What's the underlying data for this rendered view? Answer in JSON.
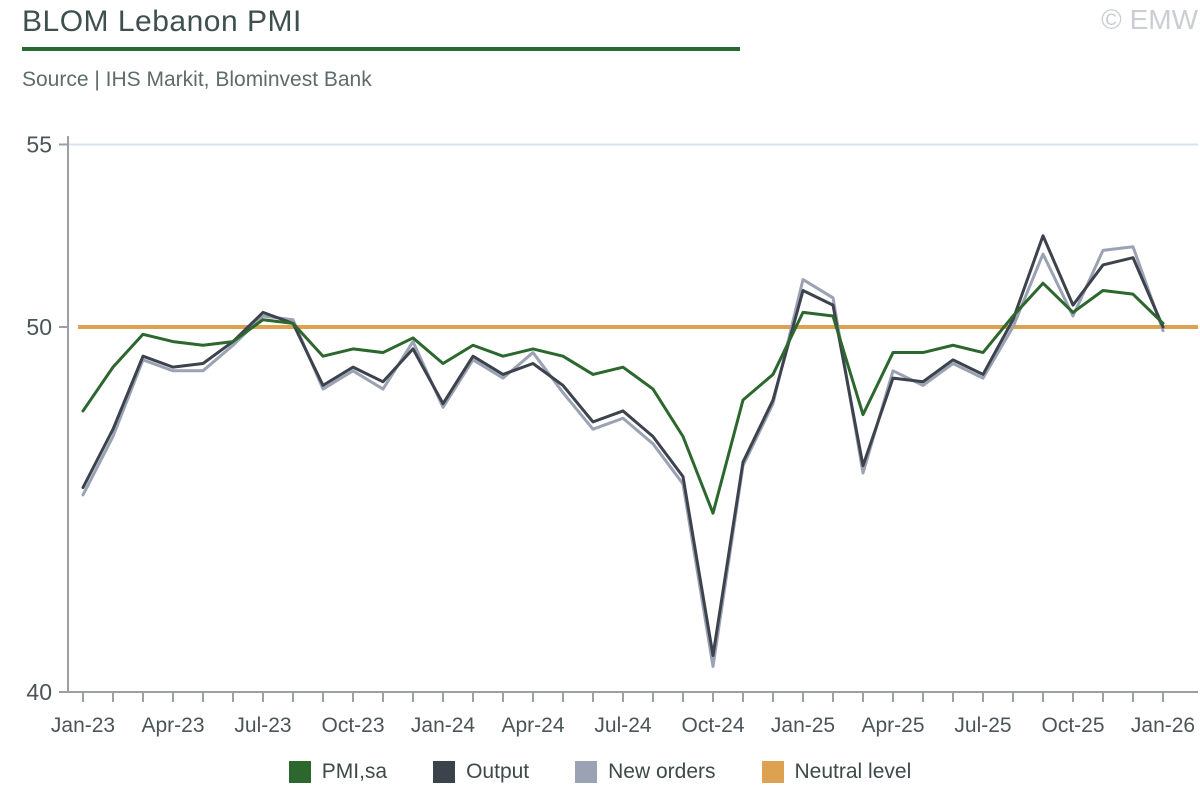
{
  "header": {
    "title": "BLOM Lebanon PMI",
    "copyright": "© EMW",
    "source": "Source | IHS Markit, Blominvest Bank"
  },
  "chart_data": {
    "type": "line",
    "title": "BLOM Lebanon PMI",
    "xlabel": "",
    "ylabel": "",
    "ylim": [
      40,
      55
    ],
    "y_ticks": [
      55,
      50,
      40
    ],
    "x_tick_label_every": 3,
    "grid": "single light-blue gridline at y=55",
    "legend_position": "bottom",
    "axis_color": "#9aa0a6",
    "tick_label_color": "#4b5557",
    "gridline_color": "#d5e3f0",
    "categories": [
      "Jan-23",
      "Feb-23",
      "Mar-23",
      "Apr-23",
      "May-23",
      "Jun-23",
      "Jul-23",
      "Aug-23",
      "Sep-23",
      "Oct-23",
      "Nov-23",
      "Dec-23",
      "Jan-24",
      "Feb-24",
      "Mar-24",
      "Apr-24",
      "May-24",
      "Jun-24",
      "Jul-24",
      "Aug-24",
      "Sep-24",
      "Oct-24",
      "Nov-24",
      "Dec-24",
      "Jan-25",
      "Feb-25",
      "Mar-25",
      "Apr-25",
      "May-25",
      "Jun-25",
      "Jul-25",
      "Aug-25",
      "Sep-25",
      "Oct-25",
      "Nov-25",
      "Dec-25",
      "Jan-26"
    ],
    "series": [
      {
        "name": "PMI,sa",
        "color": "#2c672e",
        "values": [
          47.7,
          48.9,
          49.8,
          49.6,
          49.5,
          49.6,
          50.2,
          50.1,
          49.2,
          49.4,
          49.3,
          49.7,
          49.0,
          49.5,
          49.2,
          49.4,
          49.2,
          48.7,
          48.9,
          48.3,
          47.0,
          44.9,
          48.0,
          48.7,
          50.4,
          50.3,
          47.6,
          49.3,
          49.3,
          49.5,
          49.3,
          50.3,
          51.2,
          50.4,
          51.0,
          50.9,
          50.1
        ]
      },
      {
        "name": "Output",
        "color": "#3d434d",
        "values": [
          45.6,
          47.2,
          49.2,
          48.9,
          49.0,
          49.6,
          50.4,
          50.1,
          48.4,
          48.9,
          48.5,
          49.4,
          47.9,
          49.2,
          48.7,
          49.0,
          48.4,
          47.4,
          47.7,
          47.0,
          45.9,
          41.0,
          46.3,
          48.0,
          51.0,
          50.6,
          46.2,
          48.6,
          48.5,
          49.1,
          48.7,
          50.2,
          52.5,
          50.6,
          51.7,
          51.9,
          50.0
        ]
      },
      {
        "name": "New orders",
        "color": "#9aa2b3",
        "values": [
          45.4,
          47.0,
          49.1,
          48.8,
          48.8,
          49.5,
          50.3,
          50.2,
          48.3,
          48.8,
          48.3,
          49.6,
          47.8,
          49.1,
          48.6,
          49.3,
          48.2,
          47.2,
          47.5,
          46.8,
          45.7,
          40.7,
          46.2,
          47.9,
          51.3,
          50.8,
          46.0,
          48.8,
          48.4,
          49.0,
          48.6,
          50.0,
          52.0,
          50.3,
          52.1,
          52.2,
          49.9
        ]
      },
      {
        "name": "Neutral level",
        "color": "#dda251",
        "constant": 50
      }
    ]
  }
}
